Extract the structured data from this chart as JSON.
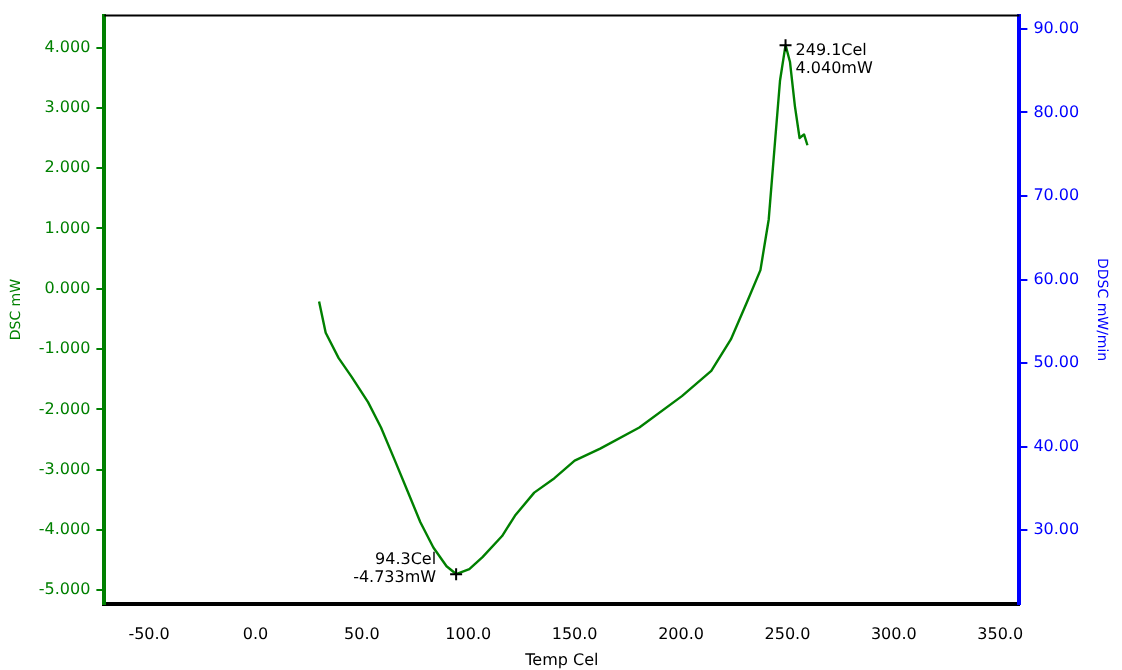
{
  "chart_data": {
    "type": "line",
    "xlabel": "Temp Cel",
    "ylabel": "DSC mW",
    "y2label": "DDSC mW/min",
    "x": [
      29.9,
      33,
      39.1,
      45.2,
      52.9,
      59,
      65.2,
      71.4,
      77.5,
      83.6,
      89.8,
      94.3,
      100.5,
      106.7,
      115.9,
      122,
      131,
      140.5,
      150,
      162,
      180.4,
      200.4,
      214.2,
      223.4,
      231.1,
      237.3,
      241.2,
      244.3,
      246.5,
      249.1,
      251.2,
      253.5,
      255.7,
      257.8,
      259.4
    ],
    "series": [
      {
        "color": "#008000",
        "values": [
          -0.21,
          -0.73,
          -1.15,
          -1.46,
          -1.88,
          -2.3,
          -2.82,
          -3.35,
          -3.87,
          -4.29,
          -4.6,
          -4.73,
          -4.65,
          -4.45,
          -4.1,
          -3.76,
          -3.38,
          -3.14,
          -2.85,
          -2.65,
          -2.3,
          -1.78,
          -1.36,
          -0.84,
          -0.21,
          0.31,
          1.15,
          2.5,
          3.45,
          4.04,
          3.76,
          3.03,
          2.5,
          2.56,
          2.38
        ]
      }
    ],
    "xlim": [
      -71,
      359
    ],
    "xticks": [
      {
        "value": -50,
        "label": "-50.0"
      },
      {
        "value": 0,
        "label": "0.0"
      },
      {
        "value": 50,
        "label": "50.0"
      },
      {
        "value": 100,
        "label": "100.0"
      },
      {
        "value": 150,
        "label": "150.0"
      },
      {
        "value": 200,
        "label": "200.0"
      },
      {
        "value": 250,
        "label": "250.0"
      },
      {
        "value": 300,
        "label": "300.0"
      },
      {
        "value": 350,
        "label": "350.0"
      }
    ],
    "ylim": [
      -5.22,
      4.53
    ],
    "yticks": [
      {
        "value": -5,
        "label": "-5.000"
      },
      {
        "value": -4,
        "label": "-4.000"
      },
      {
        "value": -3,
        "label": "-3.000"
      },
      {
        "value": -2,
        "label": "-2.000"
      },
      {
        "value": -1,
        "label": "-1.000"
      },
      {
        "value": 0,
        "label": "0.000"
      },
      {
        "value": 1,
        "label": "1.000"
      },
      {
        "value": 2,
        "label": "2.000"
      },
      {
        "value": 3,
        "label": "3.000"
      },
      {
        "value": 4,
        "label": "4.000"
      }
    ],
    "y2lim": [
      21.2,
      91.6
    ],
    "y2ticks": [
      {
        "value": 30,
        "label": "30.00"
      },
      {
        "value": 40,
        "label": "40.00"
      },
      {
        "value": 50,
        "label": "50.00"
      },
      {
        "value": 60,
        "label": "60.00"
      },
      {
        "value": 70,
        "label": "70.00"
      },
      {
        "value": 80,
        "label": "80.00"
      },
      {
        "value": 90,
        "label": "90.00"
      }
    ],
    "annotations": [
      {
        "text": "94.3Cel\n-4.733mW",
        "x": 94.3,
        "y": -4.733
      },
      {
        "text": "249.1Cel\n4.040mW",
        "x": 249.1,
        "y": 4.04
      }
    ],
    "grid": false,
    "legend": false,
    "marker": "none",
    "line_style": "solid"
  }
}
